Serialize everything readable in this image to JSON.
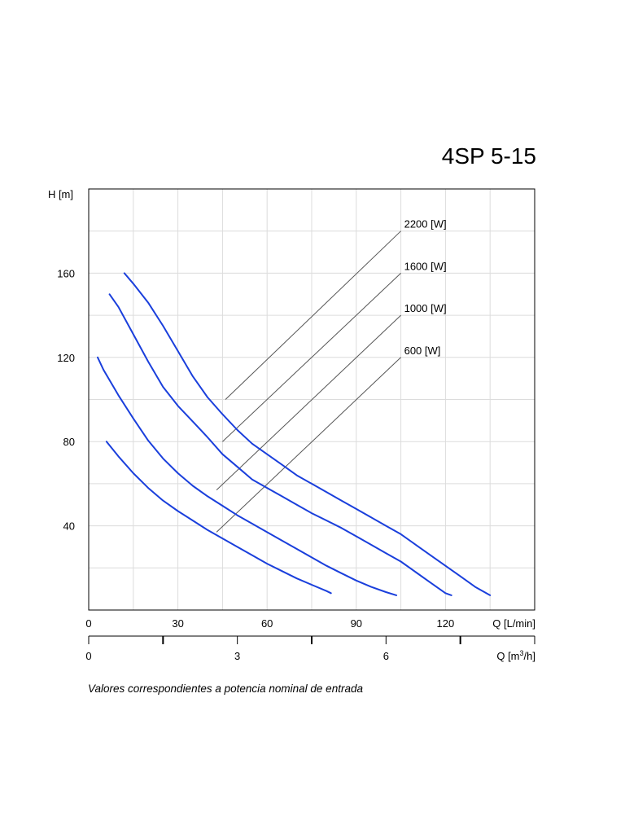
{
  "chart_data": {
    "type": "line",
    "title": "4SP 5-15",
    "ylabel": "H [m]",
    "xlabel": "Q [L/min]",
    "xlabel_secondary": "Q [m³/h]",
    "xlabel_secondary_parts": {
      "base": "Q [m",
      "sup": "3",
      "tail": "/h]"
    },
    "xlim": [
      0,
      150
    ],
    "ylim": [
      0,
      200
    ],
    "x_ticks": [
      0,
      30,
      60,
      90,
      120
    ],
    "x_ticks_secondary": [
      0,
      3,
      6
    ],
    "x_secondary_ticks_all": [
      0,
      1.5,
      3,
      4.5,
      6,
      7.5,
      9
    ],
    "secondary_xlim": [
      0,
      9
    ],
    "y_ticks": [
      40,
      80,
      120,
      160
    ],
    "grid_x": [
      15,
      30,
      45,
      60,
      75,
      90,
      105,
      120,
      135
    ],
    "grid_y": [
      20,
      40,
      60,
      80,
      100,
      120,
      140,
      160,
      180
    ],
    "grid": true,
    "line_color": "#1a3fdc",
    "note": "Valores correspondientes a potencia nominal de entrada",
    "series": [
      {
        "name": "",
        "x": [
          6,
          10,
          15,
          20,
          25,
          30,
          35,
          40,
          45,
          50,
          55,
          60,
          65,
          70,
          75,
          80,
          81.5
        ],
        "y": [
          80,
          73,
          65,
          58,
          52,
          47,
          42.5,
          38,
          34,
          30,
          26,
          22,
          18.5,
          15,
          12,
          9,
          8
        ]
      },
      {
        "name": "",
        "x": [
          3,
          5,
          10,
          15,
          20,
          25,
          30,
          35,
          40,
          45,
          50,
          55,
          60,
          65,
          70,
          75,
          80,
          85,
          90,
          95,
          100,
          103.5
        ],
        "y": [
          120,
          114,
          102,
          91,
          80.5,
          72,
          65,
          59,
          54,
          49.5,
          45,
          41,
          37,
          33,
          29,
          25,
          21,
          17.5,
          14,
          11,
          8.5,
          7
        ]
      },
      {
        "name": "",
        "x": [
          7,
          10,
          15,
          20,
          25,
          30,
          35,
          40,
          45,
          50,
          55,
          60,
          65,
          70,
          75,
          80,
          85,
          90,
          95,
          100,
          105,
          110,
          115,
          120,
          122
        ],
        "y": [
          150,
          144,
          131,
          118,
          106,
          97,
          89.5,
          82,
          74,
          68,
          62,
          58,
          54,
          50,
          46,
          42.5,
          39,
          35,
          31,
          27,
          23,
          18,
          13,
          8,
          7
        ]
      },
      {
        "name": "",
        "x": [
          12,
          15,
          20,
          25,
          30,
          35,
          40,
          45,
          50,
          55,
          60,
          65,
          70,
          75,
          80,
          85,
          90,
          95,
          100,
          105,
          110,
          115,
          120,
          125,
          130,
          135
        ],
        "y": [
          160,
          155,
          146,
          135,
          123,
          111,
          101,
          93,
          85.5,
          79,
          74,
          69,
          64,
          60,
          56,
          52,
          48,
          44,
          40,
          36,
          31,
          26,
          21,
          16,
          11,
          7
        ]
      }
    ],
    "power_lines": [
      {
        "label": "2200 [W]",
        "from": [
          46,
          100
        ],
        "to": [
          105,
          180
        ]
      },
      {
        "label": "1600 [W]",
        "from": [
          45,
          80
        ],
        "to": [
          105,
          160
        ]
      },
      {
        "label": "1000 [W]",
        "from": [
          43,
          57
        ],
        "to": [
          105,
          140
        ]
      },
      {
        "label": "600 [W]",
        "from": [
          43,
          37
        ],
        "to": [
          105,
          120
        ]
      }
    ]
  }
}
